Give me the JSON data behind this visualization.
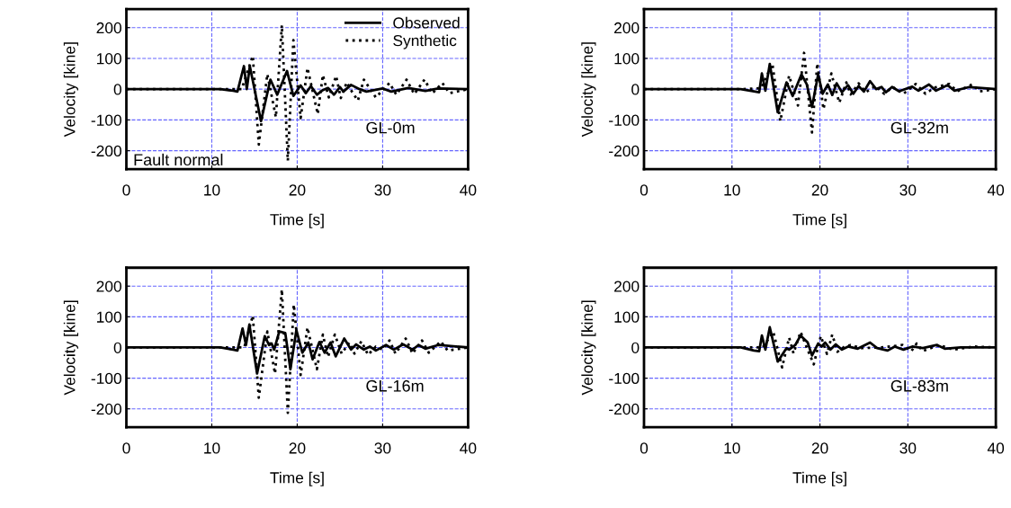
{
  "chart_data": [
    {
      "type": "line",
      "xlabel": "Time [s]",
      "ylabel": "Velocity [kine]",
      "xlim": [
        0,
        40
      ],
      "xticks": [
        0,
        10,
        20,
        30,
        40
      ],
      "ylim": [
        -260,
        260
      ],
      "yticks": [
        -200,
        -100,
        0,
        100,
        200
      ],
      "grid": true,
      "legend": "top right",
      "annotations": [
        "Fault normal",
        "GL-0m"
      ],
      "series": [
        {
          "name": "Observed",
          "color": "#000000",
          "line_style": "solid",
          "x": [
            0,
            11,
            12.5,
            13.0,
            13.76,
            14.1,
            14.45,
            15.76,
            16.86,
            17.66,
            18.8,
            19.55,
            20.4,
            21,
            21.6,
            22.3,
            23,
            23.6,
            24.3,
            25,
            25.4,
            26.3,
            27.3,
            28.1,
            30,
            31,
            33,
            35,
            36.5,
            40
          ],
          "values": [
            0,
            0,
            -5,
            -8,
            75,
            0,
            75,
            -104,
            31,
            -18,
            59,
            -22,
            12,
            -13,
            10,
            -18,
            -3,
            4,
            -18,
            7,
            -8,
            14,
            0,
            -8,
            2,
            -8,
            4,
            -6,
            2,
            0
          ]
        },
        {
          "name": "Synthetic",
          "color": "#000000",
          "line_style": "dotted",
          "x": [
            0,
            11,
            13.5,
            14.8,
            15.5,
            16.5,
            17.5,
            18.2,
            18.9,
            19.55,
            20.4,
            21.2,
            22.4,
            23.0,
            23.7,
            24.55,
            25.1,
            25.8,
            26.4,
            27.1,
            27.8,
            29.2,
            30.8,
            31.6,
            32.8,
            33.7,
            34.9,
            35.8,
            37.0,
            37.8,
            40
          ],
          "values": [
            0,
            0,
            0,
            108,
            -180,
            49,
            -91,
            208,
            -233,
            159,
            -94,
            69,
            -81,
            46,
            -27,
            43,
            -29,
            22,
            -8,
            -37,
            31,
            -27,
            20,
            -18,
            31,
            -16,
            31,
            -14,
            20,
            -13,
            0
          ]
        }
      ]
    },
    {
      "type": "line",
      "xlabel": "Time [s]",
      "ylabel": "Velocity [kine]",
      "xlim": [
        0,
        40
      ],
      "xticks": [
        0,
        10,
        20,
        30,
        40
      ],
      "ylim": [
        -260,
        260
      ],
      "yticks": [
        -200,
        -100,
        0,
        100,
        200
      ],
      "grid": true,
      "annotations": [
        "GL-32m"
      ],
      "series": [
        {
          "color": "#000000",
          "line_style": "solid",
          "x": [
            0,
            11,
            12.5,
            13.1,
            13.4,
            13.8,
            14.3,
            15.2,
            16.2,
            16.9,
            17.9,
            18.5,
            19.1,
            19.8,
            20.3,
            20.9,
            21.4,
            21.9,
            22.5,
            23.2,
            23.8,
            24.4,
            25,
            25.7,
            26.4,
            27,
            27.5,
            28.2,
            29,
            30.5,
            31.2,
            32.4,
            33.2,
            34.5,
            35.3,
            37,
            40
          ],
          "values": [
            0,
            0,
            -7,
            -10,
            51,
            -5,
            82,
            -75,
            22,
            -22,
            48,
            16,
            -58,
            48,
            -15,
            15,
            -19,
            19,
            -10,
            13,
            -15,
            10,
            -8,
            26,
            0,
            7,
            -10,
            7,
            -7,
            8,
            -5,
            15,
            -5,
            13,
            -5,
            7,
            0
          ]
        },
        {
          "color": "#000000",
          "line_style": "dotted",
          "x": [
            0,
            11,
            13.3,
            14.6,
            15.5,
            16.5,
            17.5,
            18.2,
            19.1,
            19.7,
            20.4,
            21.3,
            22.2,
            23,
            23.5,
            24.4,
            25.2,
            26.3,
            27.3,
            28.3,
            29.5,
            30.9,
            32,
            33,
            34.7,
            35.6,
            37.3,
            38.2,
            40
          ],
          "values": [
            0,
            0,
            3,
            82,
            -104,
            44,
            -53,
            118,
            -141,
            84,
            -65,
            51,
            -44,
            22,
            -17,
            19,
            -10,
            10,
            -15,
            7,
            -15,
            17,
            -15,
            5,
            17,
            -7,
            15,
            -7,
            0
          ]
        }
      ]
    },
    {
      "type": "line",
      "xlabel": "Time [s]",
      "ylabel": "Velocity [kine]",
      "xlim": [
        0,
        40
      ],
      "xticks": [
        0,
        10,
        20,
        30,
        40
      ],
      "ylim": [
        -260,
        260
      ],
      "yticks": [
        -200,
        -100,
        0,
        100,
        200
      ],
      "grid": true,
      "annotations": [
        "GL-16m"
      ],
      "series": [
        {
          "color": "#000000",
          "line_style": "solid",
          "x": [
            0,
            11,
            12.5,
            13,
            13.6,
            14,
            14.4,
            15.3,
            16.2,
            16.7,
            17,
            17.3,
            17.9,
            18.6,
            19.2,
            19.9,
            20.6,
            21.3,
            21.8,
            22.6,
            23.2,
            23.9,
            24.5,
            25.5,
            26.3,
            26.9,
            27.8,
            28.5,
            29.2,
            30.4,
            31.3,
            32.4,
            33.5,
            34.2,
            35,
            36.5,
            40
          ],
          "values": [
            0,
            0,
            -7,
            -10,
            62,
            8,
            75,
            -85,
            37,
            8,
            13,
            -7,
            52,
            47,
            -71,
            57,
            -17,
            16,
            -39,
            18,
            -17,
            16,
            -29,
            29,
            -7,
            10,
            -7,
            3,
            -10,
            8,
            -7,
            10,
            -7,
            8,
            -4,
            8,
            0
          ]
        },
        {
          "color": "#000000",
          "line_style": "dotted",
          "x": [
            0,
            11,
            13.8,
            14.8,
            15.5,
            16.5,
            17.4,
            18.2,
            18.9,
            19.6,
            20.4,
            21.2,
            22.3,
            23,
            23.6,
            24.4,
            25.2,
            26.1,
            26.7,
            27.5,
            28.3,
            29.2,
            30,
            30.8,
            31.5,
            32.7,
            33.5,
            34.6,
            35.4,
            36.8,
            37.6,
            40
          ],
          "values": [
            0,
            0,
            0,
            104,
            -164,
            52,
            -85,
            189,
            -213,
            140,
            -90,
            65,
            -71,
            42,
            -31,
            42,
            -20,
            16,
            -20,
            20,
            -24,
            3,
            -7,
            23,
            -20,
            29,
            -20,
            23,
            -17,
            20,
            -10,
            0
          ]
        }
      ]
    },
    {
      "type": "line",
      "xlabel": "Time [s]",
      "ylabel": "Velocity [kine]",
      "xlim": [
        0,
        40
      ],
      "xticks": [
        0,
        10,
        20,
        30,
        40
      ],
      "ylim": [
        -260,
        260
      ],
      "yticks": [
        -200,
        -100,
        0,
        100,
        200
      ],
      "grid": true,
      "annotations": [
        "GL-83m"
      ],
      "series": [
        {
          "color": "#000000",
          "line_style": "solid",
          "x": [
            0,
            11,
            12.5,
            13.1,
            13.4,
            13.8,
            14.3,
            15.2,
            16.2,
            16.5,
            17.2,
            17.8,
            18.6,
            19.1,
            19.8,
            20.2,
            20.6,
            21.2,
            21.8,
            22.5,
            23.2,
            24.3,
            25.7,
            26.5,
            27.7,
            28.5,
            29.5,
            30.5,
            31.7,
            33.3,
            34.2,
            36,
            40
          ],
          "values": [
            0,
            0,
            -10,
            -12,
            39,
            -7,
            66,
            -46,
            -2,
            -7,
            8,
            39,
            17,
            -26,
            13,
            3,
            16,
            -7,
            10,
            -7,
            3,
            -4,
            16,
            -2,
            -10,
            3,
            -7,
            3,
            -2,
            8,
            -4,
            0,
            0
          ]
        },
        {
          "color": "#000000",
          "line_style": "dotted",
          "x": [
            0,
            11,
            13.5,
            14.7,
            15.7,
            16.5,
            17,
            17.8,
            18.6,
            19.3,
            20.1,
            20.8,
            21.4,
            22,
            22.8,
            23.5,
            24.7,
            27,
            29.4,
            30.4,
            31,
            31.7,
            33.5,
            35.2,
            37.5,
            40
          ],
          "values": [
            0,
            0,
            0,
            51,
            -65,
            32,
            -19,
            51,
            -7,
            -55,
            37,
            -21,
            42,
            -14,
            3,
            8,
            -2,
            0,
            8,
            -12,
            13,
            -12,
            8,
            -7,
            3,
            0
          ]
        }
      ]
    }
  ]
}
